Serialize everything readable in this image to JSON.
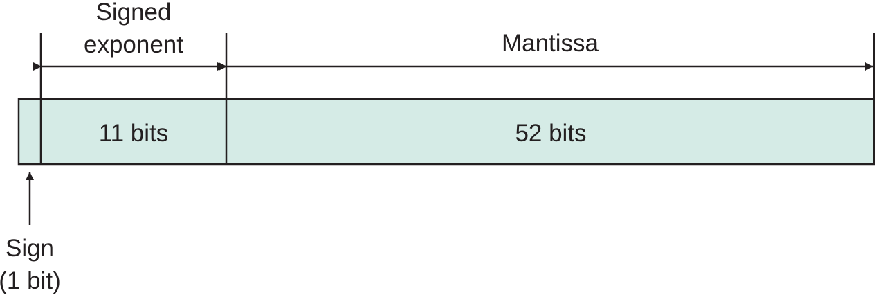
{
  "exponent": {
    "label_line1": "Signed",
    "label_line2": "exponent",
    "bits_label": "11 bits"
  },
  "mantissa": {
    "label": "Mantissa",
    "bits_label": "52 bits"
  },
  "sign": {
    "label_line1": "Sign",
    "label_line2": "(1 bit)"
  },
  "colors": {
    "field_fill": "#d5ebe6",
    "stroke": "#231f20",
    "text": "#231f20"
  }
}
